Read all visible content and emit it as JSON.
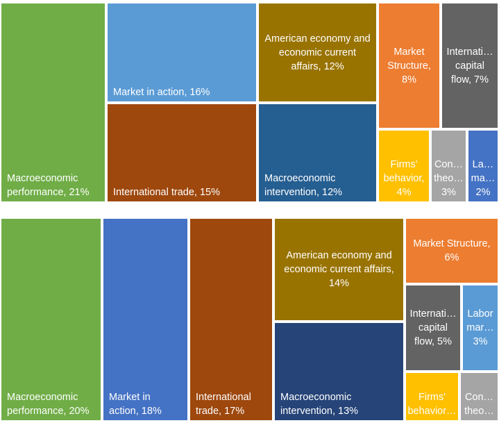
{
  "chart_data": [
    {
      "type": "treemap",
      "series": [
        {
          "name": "Macroeconomic performance",
          "value": 21,
          "label": "Macroeconomic\nperformance, 21%",
          "color": "#70AD47"
        },
        {
          "name": "Market in action",
          "value": 16,
          "label": "Market in action, 16%",
          "color": "#5B9BD5"
        },
        {
          "name": "International trade",
          "value": 15,
          "label": "International  trade, 15%",
          "color": "#9E480E"
        },
        {
          "name": "American economy and economic current affairs",
          "value": 12,
          "label": "American economy and\neconomic current\naffairs, 12%",
          "color": "#997300"
        },
        {
          "name": "Macroeconomic intervention",
          "value": 12,
          "label": "Macroeconomic\nintervention, 12%",
          "color": "#255E91"
        },
        {
          "name": "Market Structure",
          "value": 8,
          "label": "Market\nStructure,\n8%",
          "color": "#ED7D31"
        },
        {
          "name": "International capital flow",
          "value": 7,
          "label": "Internati…\ncapital\nflow, 7%",
          "color": "#636363"
        },
        {
          "name": "Firms' behavior",
          "value": 4,
          "label": "Firms'\nbehavior,\n4%",
          "color": "#FFC000"
        },
        {
          "name": "Consumer theory",
          "value": 3,
          "label": "Con…\ntheo…\n3%",
          "color": "#A5A5A5"
        },
        {
          "name": "Labor market",
          "value": 2,
          "label": "La…\nma…\n2%",
          "color": "#4472C4"
        }
      ]
    },
    {
      "type": "treemap",
      "series": [
        {
          "name": "Macroeconomic performance",
          "value": 20,
          "label": "Macroeconomic\nperformance, 20%",
          "color": "#70AD47"
        },
        {
          "name": "Market in action",
          "value": 18,
          "label": "Market in\naction, 18%",
          "color": "#4472C4"
        },
        {
          "name": "International trade",
          "value": 17,
          "label": "International\ntrade, 17%",
          "color": "#9E480E"
        },
        {
          "name": "American economy and economic current affairs",
          "value": 14,
          "label": "American economy and\neconomic current affairs,\n14%",
          "color": "#997300"
        },
        {
          "name": "Macroeconomic intervention",
          "value": 13,
          "label": "Macroeconomic\nintervention, 13%",
          "color": "#264478"
        },
        {
          "name": "Market Structure",
          "value": 6,
          "label": "Market Structure,\n6%",
          "color": "#ED7D31"
        },
        {
          "name": "International capital flow",
          "value": 5,
          "label": "Internati…\ncapital\nflow, 5%",
          "color": "#636363"
        },
        {
          "name": "Labor market",
          "value": 3,
          "label": "Labor\nmar…\n3%",
          "color": "#5B9BD5"
        },
        {
          "name": "Firms' behavior",
          "value": 3,
          "label": "Firms'\nbehavior…",
          "color": "#FFC000"
        },
        {
          "name": "Consumer theory",
          "value": 2,
          "label": "Con…\ntheo…",
          "color": "#A5A5A5"
        }
      ]
    }
  ]
}
